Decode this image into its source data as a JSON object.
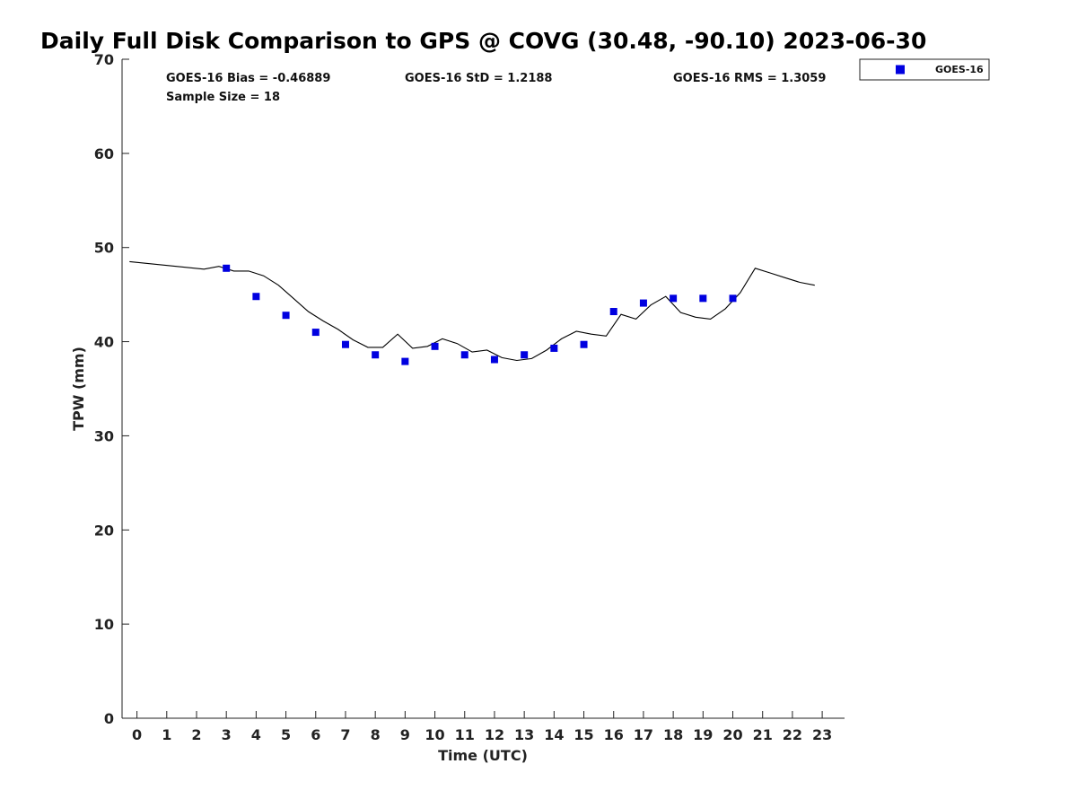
{
  "chart_data": {
    "type": "scatter",
    "title": "Daily Full Disk Comparison to GPS @ COVG (30.48, -90.10) 2023-06-30",
    "xlabel": "Time (UTC)",
    "ylabel": "TPW (mm)",
    "xlim": [
      -0.5,
      23.75
    ],
    "ylim": [
      0,
      70
    ],
    "xticks": [
      0,
      1,
      2,
      3,
      4,
      5,
      6,
      7,
      8,
      9,
      10,
      11,
      12,
      13,
      14,
      15,
      16,
      17,
      18,
      19,
      20,
      21,
      22,
      23
    ],
    "yticks": [
      0,
      10,
      20,
      30,
      40,
      50,
      60,
      70
    ],
    "grid": false,
    "legend_position": "top-right, outside plot",
    "stats": {
      "bias": "GOES-16 Bias = -0.46889",
      "std": "GOES-16 StD = 1.2188",
      "rms": "GOES-16 RMS = 1.3059",
      "sample": "Sample Size = 18"
    },
    "series": [
      {
        "name": "GOES-16",
        "type": "scatter",
        "marker": "square",
        "color": "#0000e0",
        "x": [
          3,
          4,
          5,
          6,
          7,
          8,
          9,
          10,
          11,
          12,
          13,
          14,
          15,
          16,
          17,
          18,
          19,
          20
        ],
        "y": [
          47.8,
          44.8,
          42.8,
          41.0,
          39.7,
          38.6,
          37.9,
          39.5,
          38.6,
          38.1,
          38.6,
          39.3,
          39.7,
          43.2,
          44.1,
          44.6,
          44.6,
          44.6
        ]
      },
      {
        "type": "line",
        "color": "#000000",
        "x": [
          -0.25,
          2.25,
          2.75,
          3.25,
          3.75,
          4.25,
          4.75,
          5.25,
          5.75,
          6.25,
          6.75,
          7.25,
          7.75,
          8.25,
          8.75,
          9.25,
          9.75,
          10.25,
          10.75,
          11.25,
          11.75,
          12.25,
          12.75,
          13.25,
          13.75,
          14.25,
          14.75,
          15.25,
          15.75,
          16.25,
          16.75,
          17.25,
          17.75,
          18.25,
          18.75,
          19.25,
          19.75,
          20.25,
          20.75,
          21.25,
          21.75,
          22.25,
          22.75
        ],
        "y": [
          48.5,
          47.7,
          48.0,
          47.5,
          47.5,
          47.0,
          46.0,
          44.6,
          43.2,
          42.2,
          41.3,
          40.2,
          39.4,
          39.4,
          40.8,
          39.3,
          39.5,
          40.3,
          39.8,
          38.9,
          39.1,
          38.3,
          38.0,
          38.2,
          39.1,
          40.3,
          41.1,
          40.8,
          40.6,
          42.9,
          42.4,
          43.9,
          44.8,
          43.1,
          42.6,
          42.4,
          43.5,
          45.2,
          47.8,
          47.3,
          46.8,
          46.3,
          46.0
        ]
      }
    ]
  }
}
